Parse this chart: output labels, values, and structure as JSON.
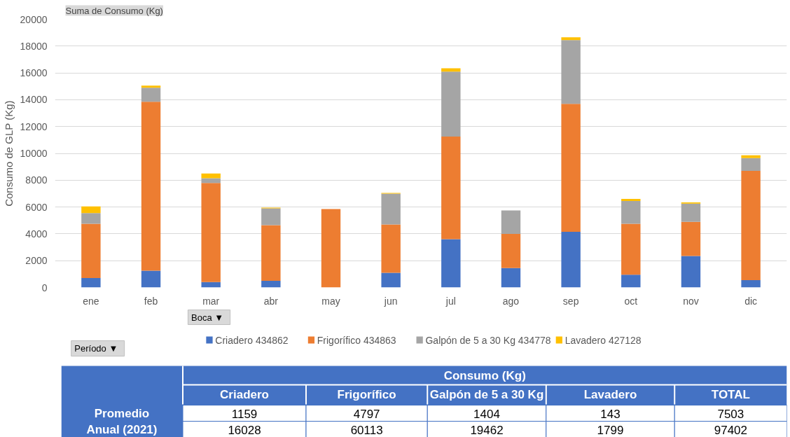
{
  "chart_data": {
    "type": "bar",
    "stacked": true,
    "title": "Suma de Consumo (Kg)",
    "ylabel": "Consumo de GLP (Kg)",
    "categories": [
      "ene",
      "feb",
      "mar",
      "abr",
      "may",
      "jun",
      "jul",
      "ago",
      "sep",
      "oct",
      "nov",
      "dic"
    ],
    "series": [
      {
        "name": "Criadero 434862",
        "color": "#4472c4",
        "values": [
          700,
          1250,
          400,
          500,
          0,
          1100,
          3600,
          1450,
          4150,
          950,
          2350,
          550
        ]
      },
      {
        "name": "Frigorífico 434863",
        "color": "#ed7d31",
        "values": [
          4050,
          12600,
          7400,
          4150,
          5850,
          3600,
          7650,
          2550,
          9550,
          3800,
          2550,
          8150
        ]
      },
      {
        "name": "Galpón de 5 a 30 Kg 434778",
        "color": "#a5a5a5",
        "values": [
          800,
          1050,
          350,
          1250,
          0,
          2300,
          4850,
          1750,
          4750,
          1700,
          1350,
          950
        ]
      },
      {
        "name": "Lavadero 427128",
        "color": "#ffc000",
        "values": [
          500,
          150,
          350,
          50,
          0,
          50,
          250,
          0,
          200,
          150,
          100,
          200
        ]
      }
    ],
    "ylim": [
      0,
      20000
    ],
    "yticks": [
      0,
      2000,
      4000,
      6000,
      8000,
      10000,
      12000,
      14000,
      16000,
      18000,
      20000
    ],
    "grid": "y",
    "legend": "bottom",
    "annotations": [
      "Boca ▼",
      "Período ▼",
      "Consumo (Kg)",
      "Criadero",
      "Frigorífico",
      "Galpón de 5 a 30 Kg",
      "Lavadero",
      "TOTAL",
      "Promedio",
      "Anual (2021)",
      "1159",
      "4797",
      "1404",
      "143",
      "7503",
      "16028",
      "60113",
      "19462",
      "1799",
      "97402"
    ]
  }
}
